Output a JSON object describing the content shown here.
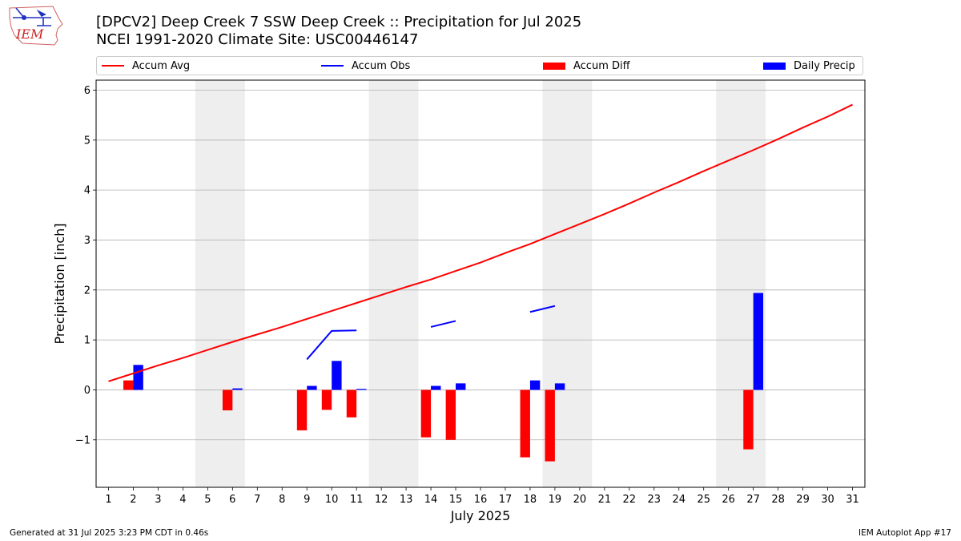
{
  "header": {
    "title_line1": "[DPCV2] Deep Creek 7 SSW Deep Creek :: Precipitation for Jul 2025",
    "title_line2": "NCEI 1991-2020 Climate Site: USC00446147",
    "logo_text": "IEM"
  },
  "legend": {
    "accum_avg": "Accum Avg",
    "accum_obs": "Accum Obs",
    "accum_diff": "Accum Diff",
    "daily_precip": "Daily Precip"
  },
  "footer": {
    "generated": "Generated at 31 Jul 2025 3:23 PM CDT in 0.46s",
    "app": "IEM Autoplot App #17"
  },
  "colors": {
    "accum_avg": "#ff0000",
    "accum_obs": "#0000ff",
    "accum_diff": "#ff0000",
    "daily_precip": "#0000ff",
    "weekend_shade": "#eeeeee",
    "grid": "#b0b0b0"
  },
  "chart_data": {
    "type": "bar",
    "xlabel": "July 2025",
    "ylabel": "Precipitation [inch]",
    "xlim": [
      0.5,
      31.5
    ],
    "ylim": [
      -1.95,
      6.2
    ],
    "yticks": [
      -1,
      0,
      1,
      2,
      3,
      4,
      5,
      6
    ],
    "ytick_labels": [
      "−1",
      "0",
      "1",
      "2",
      "3",
      "4",
      "5",
      "6"
    ],
    "categories": [
      "1",
      "2",
      "3",
      "4",
      "5",
      "6",
      "7",
      "8",
      "9",
      "10",
      "11",
      "12",
      "13",
      "14",
      "15",
      "16",
      "17",
      "18",
      "19",
      "20",
      "21",
      "22",
      "23",
      "24",
      "25",
      "26",
      "27",
      "28",
      "29",
      "30",
      "31"
    ],
    "grid": "horizontal",
    "legend_position": "top",
    "weekend_spans": [
      [
        4.5,
        6.5
      ],
      [
        11.5,
        13.5
      ],
      [
        18.5,
        20.5
      ],
      [
        25.5,
        27.5
      ]
    ],
    "series": [
      {
        "name": "Accum Avg",
        "kind": "line",
        "x": [
          1,
          2,
          3,
          4,
          5,
          6,
          7,
          8,
          9,
          10,
          11,
          12,
          13,
          14,
          15,
          16,
          17,
          18,
          19,
          20,
          21,
          22,
          23,
          24,
          25,
          26,
          27,
          28,
          29,
          30,
          31
        ],
        "values": [
          0.17,
          0.33,
          0.49,
          0.64,
          0.8,
          0.96,
          1.11,
          1.26,
          1.42,
          1.58,
          1.74,
          1.9,
          2.06,
          2.21,
          2.38,
          2.55,
          2.74,
          2.92,
          3.12,
          3.32,
          3.52,
          3.73,
          3.95,
          4.16,
          4.38,
          4.59,
          4.8,
          5.02,
          5.25,
          5.47,
          5.71
        ]
      },
      {
        "name": "Accum Obs",
        "kind": "line",
        "segments": [
          {
            "x": [
              9,
              10,
              11
            ],
            "values": [
              0.61,
              1.18,
              1.19
            ]
          },
          {
            "x": [
              14,
              15
            ],
            "values": [
              1.26,
              1.38
            ]
          },
          {
            "x": [
              18,
              19
            ],
            "values": [
              1.56,
              1.68
            ]
          }
        ]
      },
      {
        "name": "Accum Diff",
        "kind": "bar",
        "x": [
          2,
          6,
          9,
          10,
          11,
          14,
          15,
          18,
          19,
          27
        ],
        "values": [
          0.19,
          -0.41,
          -0.81,
          -0.4,
          -0.55,
          -0.95,
          -1.0,
          -1.35,
          -1.43,
          -1.19
        ]
      },
      {
        "name": "Daily Precip",
        "kind": "bar",
        "x": [
          2,
          6,
          9,
          10,
          11,
          14,
          15,
          18,
          19,
          27
        ],
        "values": [
          0.5,
          0.03,
          0.08,
          0.58,
          0.02,
          0.08,
          0.13,
          0.19,
          0.13,
          1.94
        ]
      }
    ]
  }
}
